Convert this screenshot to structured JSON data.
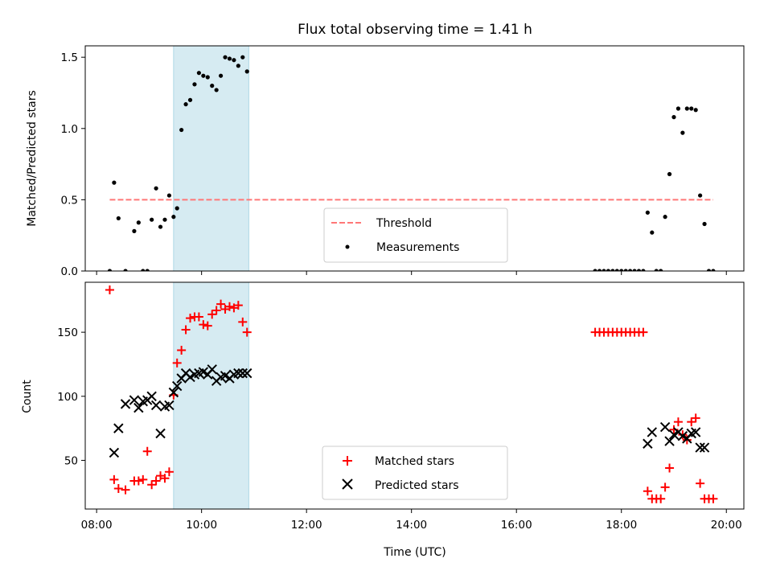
{
  "chart_data": [
    {
      "type": "scatter",
      "panel": "top",
      "title": "Flux total observing time = 1.41 h",
      "xlabel": "",
      "ylabel": "Matched/Predicted stars",
      "xlim": [
        "07:47",
        "20:20"
      ],
      "ylim": [
        0,
        1.58
      ],
      "yticks": [
        "0.0",
        "0.5",
        "1.0",
        "1.5"
      ],
      "highlight_span": [
        "09:28",
        "10:54"
      ],
      "legend": {
        "position": "lower-center",
        "entries": [
          "Threshold",
          "Measurements"
        ]
      },
      "threshold": {
        "name": "Threshold",
        "y": 0.5,
        "x": [
          "08:15",
          "19:45"
        ],
        "color": "#ff7777"
      },
      "series": [
        {
          "name": "Measurements",
          "color": "#000000",
          "x": [
            "08:15",
            "08:20",
            "08:25",
            "08:33",
            "08:43",
            "08:48",
            "08:53",
            "08:58",
            "09:03",
            "09:08",
            "09:13",
            "09:18",
            "09:23",
            "09:28",
            "09:32",
            "09:37",
            "09:42",
            "09:47",
            "09:52",
            "09:57",
            "10:02",
            "10:07",
            "10:12",
            "10:17",
            "10:22",
            "10:27",
            "10:32",
            "10:37",
            "10:42",
            "10:47",
            "10:52",
            "17:30",
            "17:35",
            "17:40",
            "17:45",
            "17:50",
            "17:55",
            "18:00",
            "18:05",
            "18:10",
            "18:15",
            "18:20",
            "18:25",
            "18:30",
            "18:35",
            "18:40",
            "18:45",
            "18:50",
            "18:55",
            "19:00",
            "19:05",
            "19:10",
            "19:15",
            "19:20",
            "19:25",
            "19:30",
            "19:35",
            "19:40",
            "19:45"
          ],
          "y": [
            0,
            0.62,
            0.37,
            0,
            0.28,
            0.34,
            0,
            0,
            0.36,
            0.58,
            0.31,
            0.36,
            0.53,
            0.38,
            0.44,
            0.99,
            1.17,
            1.2,
            1.31,
            1.39,
            1.37,
            1.36,
            1.3,
            1.27,
            1.37,
            1.5,
            1.49,
            1.48,
            1.44,
            1.5,
            1.4,
            0,
            0,
            0,
            0,
            0,
            0,
            0,
            0,
            0,
            0,
            0,
            0,
            0.41,
            0.27,
            0,
            0,
            0.38,
            0.68,
            1.08,
            1.14,
            0.97,
            1.14,
            1.14,
            1.13,
            0.53,
            0.33,
            0,
            0
          ]
        }
      ]
    },
    {
      "type": "scatter",
      "panel": "bottom",
      "xlabel": "Time (UTC)",
      "ylabel": "Count",
      "xlim": [
        "07:47",
        "20:20"
      ],
      "ylim": [
        12,
        189
      ],
      "xticks": [
        "08:00",
        "10:00",
        "12:00",
        "14:00",
        "16:00",
        "18:00",
        "20:00"
      ],
      "yticks": [
        "50",
        "100",
        "150"
      ],
      "highlight_span": [
        "09:28",
        "10:54"
      ],
      "legend": {
        "position": "lower-center",
        "entries": [
          "Matched stars",
          "Predicted stars"
        ]
      },
      "series": [
        {
          "name": "Matched stars",
          "marker": "+",
          "color": "#ff0000",
          "x": [
            "08:15",
            "08:20",
            "08:25",
            "08:33",
            "08:43",
            "08:48",
            "08:53",
            "08:58",
            "09:03",
            "09:08",
            "09:13",
            "09:18",
            "09:23",
            "09:28",
            "09:32",
            "09:37",
            "09:42",
            "09:47",
            "09:52",
            "09:57",
            "10:02",
            "10:07",
            "10:12",
            "10:17",
            "10:22",
            "10:27",
            "10:32",
            "10:37",
            "10:42",
            "10:47",
            "10:52",
            "17:30",
            "17:35",
            "17:40",
            "17:45",
            "17:50",
            "17:55",
            "18:00",
            "18:05",
            "18:10",
            "18:15",
            "18:20",
            "18:25",
            "18:30",
            "18:35",
            "18:40",
            "18:45",
            "18:50",
            "18:55",
            "19:00",
            "19:05",
            "19:10",
            "19:15",
            "19:20",
            "19:25",
            "19:30",
            "19:35",
            "19:40",
            "19:45"
          ],
          "y": [
            183,
            35,
            28,
            27,
            34,
            34,
            35,
            57,
            31,
            34,
            38,
            36,
            41,
            101,
            126,
            136,
            152,
            161,
            162,
            162,
            156,
            155,
            164,
            167,
            172,
            168,
            170,
            169,
            171,
            158,
            150,
            150,
            150,
            150,
            150,
            150,
            150,
            150,
            150,
            150,
            150,
            150,
            150,
            26,
            20,
            20,
            20,
            29,
            44,
            74,
            80,
            70,
            66,
            80,
            83,
            32,
            20,
            20,
            20
          ]
        },
        {
          "name": "Predicted stars",
          "marker": "x",
          "color": "#000000",
          "x": [
            "08:20",
            "08:25",
            "08:33",
            "08:43",
            "08:48",
            "08:53",
            "08:58",
            "09:03",
            "09:08",
            "09:13",
            "09:18",
            "09:23",
            "09:28",
            "09:32",
            "09:37",
            "09:42",
            "09:47",
            "09:52",
            "09:57",
            "10:02",
            "10:07",
            "10:12",
            "10:17",
            "10:22",
            "10:27",
            "10:32",
            "10:37",
            "10:42",
            "10:47",
            "10:52",
            "18:30",
            "18:35",
            "18:50",
            "18:55",
            "19:00",
            "19:05",
            "19:10",
            "19:15",
            "19:20",
            "19:25",
            "19:30",
            "19:35"
          ],
          "y": [
            56,
            75,
            94,
            97,
            91,
            96,
            97,
            100,
            93,
            71,
            92,
            93,
            103,
            108,
            114,
            118,
            115,
            117,
            118,
            119,
            117,
            121,
            112,
            115,
            116,
            114,
            117,
            118,
            118,
            118,
            63,
            72,
            76,
            65,
            70,
            72,
            69,
            67,
            71,
            72,
            60,
            60
          ]
        }
      ]
    }
  ]
}
